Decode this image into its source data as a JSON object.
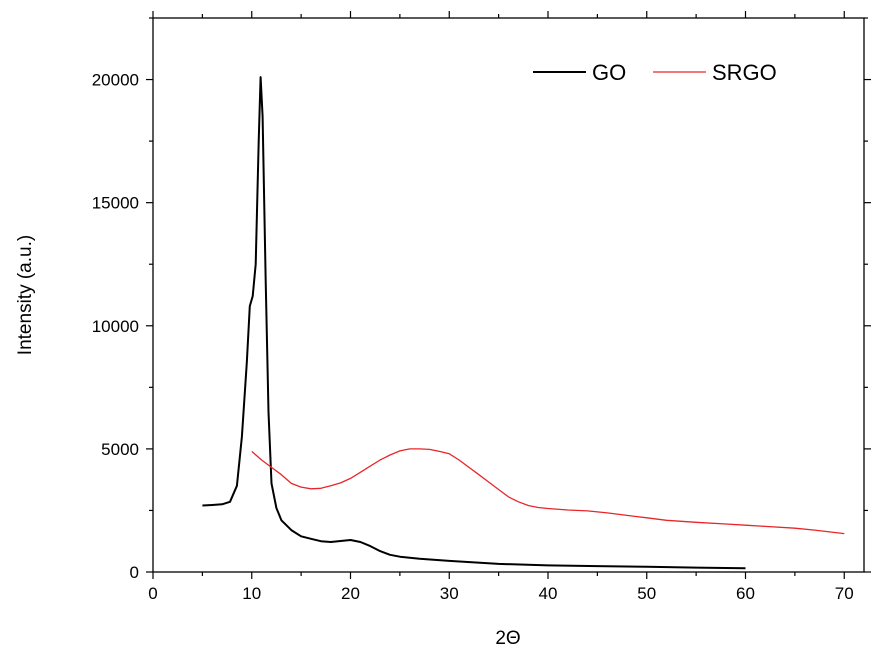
{
  "chart_data": {
    "type": "line",
    "title": "",
    "xlabel": "2Θ",
    "ylabel": "Intensity (a.u.)",
    "xlim": [
      0,
      72
    ],
    "ylim": [
      0,
      22500
    ],
    "x_ticks": [
      0,
      10,
      20,
      30,
      40,
      50,
      60,
      70
    ],
    "y_ticks": [
      0,
      5000,
      10000,
      15000,
      20000
    ],
    "grid": false,
    "legend_position": "top-right",
    "series": [
      {
        "name": "GO",
        "color": "#000000",
        "points": [
          [
            5,
            2700
          ],
          [
            6,
            2720
          ],
          [
            7,
            2750
          ],
          [
            7.8,
            2850
          ],
          [
            8.5,
            3500
          ],
          [
            9.0,
            5500
          ],
          [
            9.5,
            8500
          ],
          [
            9.8,
            10800
          ],
          [
            10.1,
            11200
          ],
          [
            10.4,
            12500
          ],
          [
            10.7,
            17500
          ],
          [
            10.9,
            20100
          ],
          [
            11.1,
            18500
          ],
          [
            11.4,
            12000
          ],
          [
            11.7,
            6500
          ],
          [
            12,
            3600
          ],
          [
            12.5,
            2600
          ],
          [
            13,
            2100
          ],
          [
            14,
            1700
          ],
          [
            15,
            1450
          ],
          [
            16,
            1350
          ],
          [
            17,
            1250
          ],
          [
            18,
            1220
          ],
          [
            19,
            1260
          ],
          [
            20,
            1300
          ],
          [
            21,
            1220
          ],
          [
            22,
            1050
          ],
          [
            23,
            850
          ],
          [
            24,
            700
          ],
          [
            25,
            620
          ],
          [
            27,
            540
          ],
          [
            30,
            450
          ],
          [
            35,
            330
          ],
          [
            40,
            270
          ],
          [
            45,
            240
          ],
          [
            50,
            210
          ],
          [
            55,
            180
          ],
          [
            60,
            150
          ]
        ]
      },
      {
        "name": "SRGO",
        "color": "#e8262a",
        "points": [
          [
            10,
            4900
          ],
          [
            11,
            4550
          ],
          [
            12,
            4250
          ],
          [
            13,
            3950
          ],
          [
            14,
            3600
          ],
          [
            15,
            3450
          ],
          [
            16,
            3380
          ],
          [
            17,
            3400
          ],
          [
            18,
            3500
          ],
          [
            19,
            3620
          ],
          [
            20,
            3800
          ],
          [
            21,
            4050
          ],
          [
            22,
            4300
          ],
          [
            23,
            4550
          ],
          [
            24,
            4750
          ],
          [
            25,
            4920
          ],
          [
            26,
            5000
          ],
          [
            27,
            5000
          ],
          [
            28,
            4980
          ],
          [
            29,
            4900
          ],
          [
            30,
            4800
          ],
          [
            31,
            4550
          ],
          [
            32,
            4250
          ],
          [
            33,
            3950
          ],
          [
            34,
            3650
          ],
          [
            35,
            3350
          ],
          [
            36,
            3050
          ],
          [
            37,
            2850
          ],
          [
            38,
            2700
          ],
          [
            39,
            2620
          ],
          [
            40,
            2580
          ],
          [
            42,
            2520
          ],
          [
            44,
            2480
          ],
          [
            46,
            2400
          ],
          [
            48,
            2300
          ],
          [
            50,
            2200
          ],
          [
            52,
            2100
          ],
          [
            55,
            2020
          ],
          [
            58,
            1950
          ],
          [
            60,
            1900
          ],
          [
            62,
            1850
          ],
          [
            65,
            1780
          ],
          [
            67,
            1700
          ],
          [
            70,
            1560
          ]
        ]
      }
    ]
  }
}
